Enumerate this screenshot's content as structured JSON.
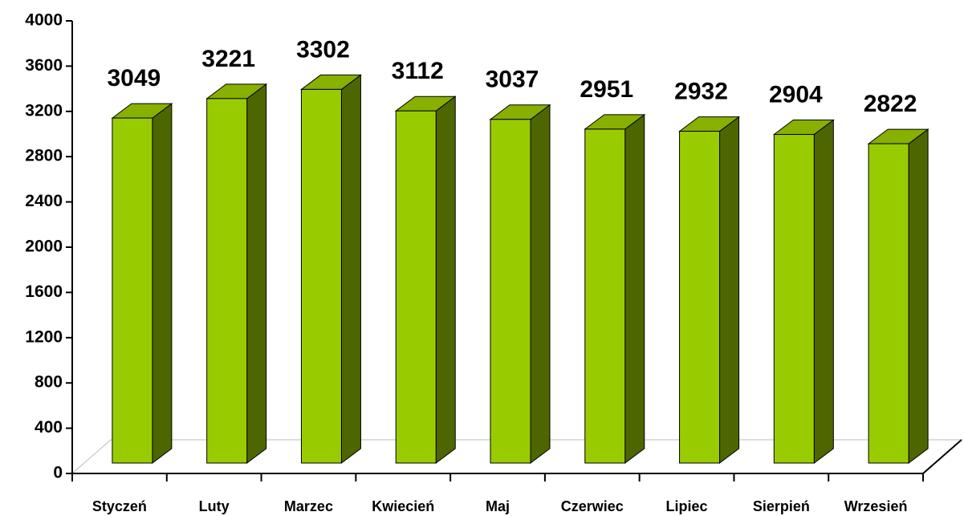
{
  "chart_data": {
    "type": "bar3d",
    "categories": [
      "Styczeń",
      "Luty",
      "Marzec",
      "Kwiecień",
      "Maj",
      "Czerwiec",
      "Lipiec",
      "Sierpień",
      "Wrzesień"
    ],
    "values": [
      3049,
      3221,
      3302,
      3112,
      3037,
      2951,
      2932,
      2904,
      2822
    ],
    "color": "#99cc00",
    "ylim": [
      0,
      4000
    ],
    "yticks": [
      0,
      400,
      800,
      1200,
      1600,
      2000,
      2400,
      2800,
      3200,
      3600,
      4000
    ],
    "grid": false
  }
}
